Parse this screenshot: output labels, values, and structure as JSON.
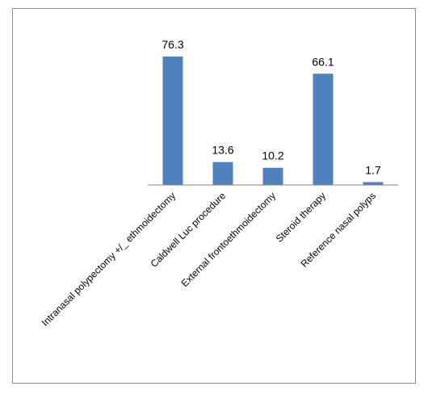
{
  "chart_data": {
    "type": "bar",
    "categories": [
      "Intranasal polypectomy +/_ ethmoidectomy",
      "Caldwell Luc procedure",
      "External frontoethmoidectomy",
      "Steroid therapy",
      "Reference nasal polyps"
    ],
    "values": [
      76.3,
      13.6,
      10.2,
      66.1,
      1.7
    ],
    "data_labels": [
      "76.3",
      "13.6",
      "10.2",
      "66.1",
      "1.7"
    ],
    "ylim": [
      0,
      76.3
    ],
    "grid": false,
    "legend": "none",
    "bar_color": "#4f81bd",
    "axis_color": "#868686"
  }
}
